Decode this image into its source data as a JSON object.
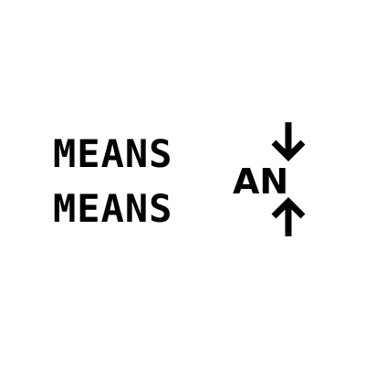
{
  "words": {
    "line1": "MEANS",
    "line2": "MEANS"
  },
  "label": "AN",
  "arrows": {
    "top_icon": "arrow-down-icon",
    "bottom_icon": "arrow-up-icon",
    "color": "#000000"
  },
  "colors": {
    "background": "#ffffff",
    "text": "#000000"
  }
}
